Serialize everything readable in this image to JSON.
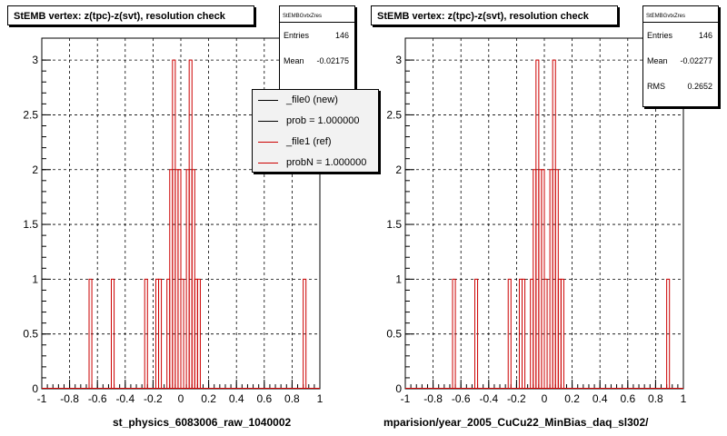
{
  "footer_text": "",
  "chart_data": [
    {
      "type": "histogram",
      "title": "StEMB  vertex: z(tpc)-z(svt), resolution check",
      "xlabel": "st_physics_6083006_raw_1040002",
      "ylabel": "",
      "xlim": [
        -1,
        1
      ],
      "ylim": [
        0,
        3.2
      ],
      "xticks": [
        "-1",
        "-0.8",
        "-0.6",
        "-0.4",
        "-0.2",
        "0",
        "0.2",
        "0.4",
        "0.6",
        "0.8",
        "1"
      ],
      "yticks": [
        "0",
        "0.5",
        "1",
        "1.5",
        "2",
        "2.5",
        "3"
      ],
      "grid": true,
      "bin_width": 0.02,
      "bins_lo": [
        -0.66,
        -0.5,
        -0.26,
        -0.18,
        -0.16,
        -0.1,
        -0.08,
        -0.06,
        -0.04,
        -0.02,
        0.0,
        0.04,
        0.06,
        0.08,
        0.1,
        0.12,
        0.88
      ],
      "counts": [
        1,
        1,
        1,
        1,
        1,
        1,
        2,
        3,
        2,
        2,
        1,
        2,
        3,
        2,
        1,
        1,
        1
      ],
      "stats": {
        "name": "StEMBGvtxZres",
        "rows": [
          {
            "label": "Entries",
            "value": "146"
          },
          {
            "label": "Mean",
            "value": "-0.02175"
          }
        ]
      },
      "legend": [
        {
          "label": "_file0 (new)",
          "color": "#000000"
        },
        {
          "label": "prob = 1.000000",
          "color": "#000000"
        },
        {
          "label": "_file1 (ref)",
          "color": "#cc0000"
        },
        {
          "label": "probN = 1.000000",
          "color": "#cc0000"
        }
      ]
    },
    {
      "type": "histogram",
      "title": "StEMB  vertex: z(tpc)-z(svt), resolution check",
      "xlabel": "mparision/year_2005_CuCu22_MinBias_daq_sl302/",
      "ylabel": "",
      "xlim": [
        -1,
        1
      ],
      "ylim": [
        0,
        3.2
      ],
      "xticks": [
        "-1",
        "-0.8",
        "-0.6",
        "-0.4",
        "-0.2",
        "0",
        "0.2",
        "0.4",
        "0.6",
        "0.8",
        "1"
      ],
      "yticks": [
        "0",
        "0.5",
        "1",
        "1.5",
        "2",
        "2.5",
        "3"
      ],
      "grid": true,
      "bin_width": 0.02,
      "bins_lo": [
        -0.66,
        -0.5,
        -0.26,
        -0.18,
        -0.16,
        -0.1,
        -0.08,
        -0.06,
        -0.04,
        -0.02,
        0.0,
        0.04,
        0.06,
        0.08,
        0.1,
        0.12,
        0.88
      ],
      "counts": [
        1,
        1,
        1,
        1,
        1,
        1,
        2,
        3,
        2,
        2,
        1,
        2,
        3,
        2,
        1,
        1,
        1
      ],
      "stats": {
        "name": "StEMBGvtxZres",
        "rows": [
          {
            "label": "Entries",
            "value": "146"
          },
          {
            "label": "Mean",
            "value": "-0.02277"
          },
          {
            "label": "RMS",
            "value": "0.2652"
          }
        ]
      },
      "legend": []
    }
  ]
}
